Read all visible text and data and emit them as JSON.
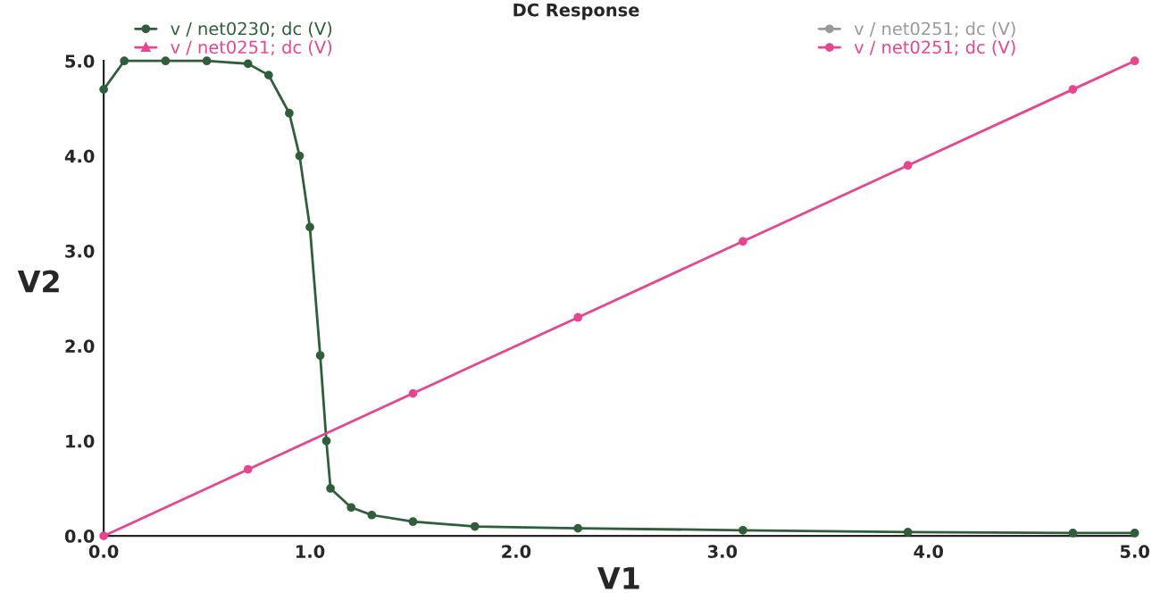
{
  "chart_data": {
    "type": "line",
    "title": "DC Response",
    "xlabel": "V1",
    "ylabel": "V2",
    "xlim": [
      0,
      5
    ],
    "ylim": [
      0,
      5
    ],
    "xticks": [
      {
        "value": 0,
        "label": "0.0"
      },
      {
        "value": 1,
        "label": "1.0"
      },
      {
        "value": 2,
        "label": "2.0"
      },
      {
        "value": 3,
        "label": "3.0"
      },
      {
        "value": 4,
        "label": "4.0"
      },
      {
        "value": 5,
        "label": "5.0"
      }
    ],
    "yticks": [
      {
        "value": 0,
        "label": "0.0"
      },
      {
        "value": 1,
        "label": "1.0"
      },
      {
        "value": 2,
        "label": "2.0"
      },
      {
        "value": 3,
        "label": "3.0"
      },
      {
        "value": 4,
        "label": "4.0"
      },
      {
        "value": 5,
        "label": "5.0"
      }
    ],
    "grid": false,
    "legend": "top",
    "series": [
      {
        "name": "v / net0230; dc (V)",
        "color": "#2e5e3a",
        "marker": "circle",
        "x": [
          0,
          0.1,
          0.3,
          0.5,
          0.7,
          0.8,
          0.9,
          0.95,
          1.0,
          1.05,
          1.08,
          1.1,
          1.2,
          1.3,
          1.5,
          1.8,
          2.3,
          3.1,
          3.9,
          4.7,
          5.0
        ],
        "values": [
          4.7,
          5.0,
          5.0,
          5.0,
          4.97,
          4.85,
          4.45,
          4.0,
          3.25,
          1.9,
          1.0,
          0.5,
          0.3,
          0.22,
          0.15,
          0.1,
          0.08,
          0.06,
          0.04,
          0.03,
          0.03
        ]
      },
      {
        "name": "v / net0251; dc (V)",
        "color": "#e8458f",
        "marker": "triangle"
      },
      {
        "name": "v / net0251; dc (V)",
        "color": "#999999",
        "marker": "circle"
      },
      {
        "name": "v / net0251; dc (V)",
        "color": "#e8458f",
        "marker": "circle",
        "x": [
          0,
          0.7,
          1.5,
          2.3,
          3.1,
          3.9,
          4.7,
          5.0
        ],
        "values": [
          0,
          0.7,
          1.5,
          2.3,
          3.1,
          3.9,
          4.7,
          5.0
        ]
      }
    ]
  }
}
